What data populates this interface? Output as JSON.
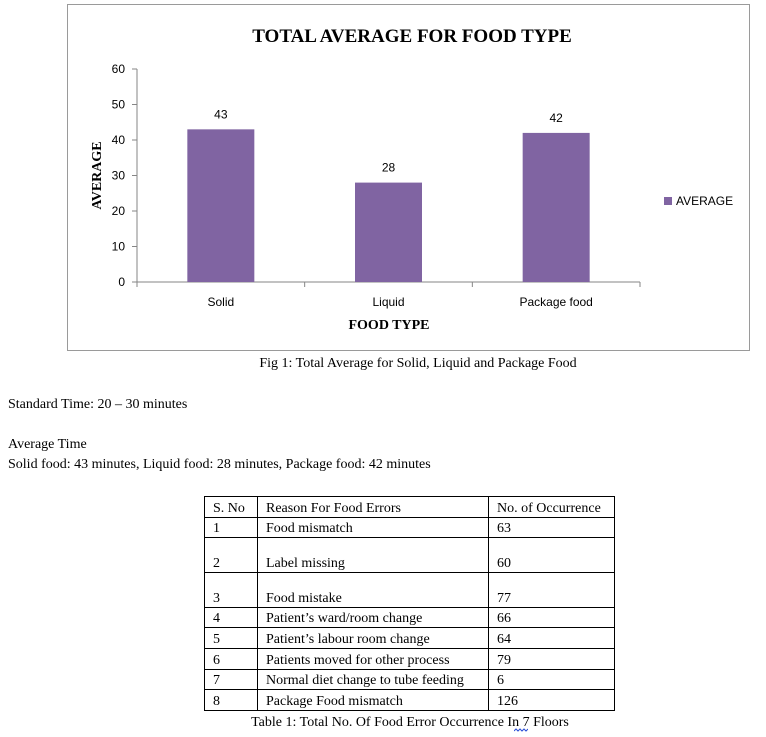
{
  "chart_data": {
    "type": "bar",
    "title": "TOTAL AVERAGE FOR FOOD TYPE",
    "xlabel": "FOOD TYPE",
    "ylabel": "AVERAGE",
    "categories": [
      "Solid",
      "Liquid",
      "Package food"
    ],
    "series": [
      {
        "name": "AVERAGE",
        "values": [
          43,
          28,
          42
        ],
        "color": "#8064a2"
      }
    ],
    "ylim": [
      0,
      60
    ],
    "yticks": [
      "0",
      "10",
      "20",
      "30",
      "40",
      "50",
      "60"
    ],
    "grid": false,
    "legend_position": "right"
  },
  "figure_caption": "Fig 1: Total Average for Solid, Liquid and Package Food",
  "standard_time": "Standard Time: 20 – 30 minutes",
  "average_time_heading": "Average Time",
  "average_time_values": "Solid food: 43 minutes, Liquid food: 28 minutes, Package food: 42 minutes",
  "table": {
    "headers": [
      "S. No",
      "Reason For Food Errors",
      "No. of Occurrence"
    ],
    "rows": [
      [
        "1",
        "Food mismatch",
        "63"
      ],
      [
        "2",
        "Label missing",
        "60"
      ],
      [
        "3",
        "Food mistake",
        "77"
      ],
      [
        "4",
        "Patient’s ward/room change",
        "66"
      ],
      [
        "5",
        "Patient’s labour room change",
        "64"
      ],
      [
        "6",
        "Patients moved for other process",
        "79"
      ],
      [
        "7",
        "Normal diet change to tube feeding",
        "6"
      ],
      [
        "8",
        "Package Food  mismatch",
        "126"
      ]
    ],
    "caption": "Table 1: Total No. Of Food Error Occurrence In 7 Floors"
  }
}
